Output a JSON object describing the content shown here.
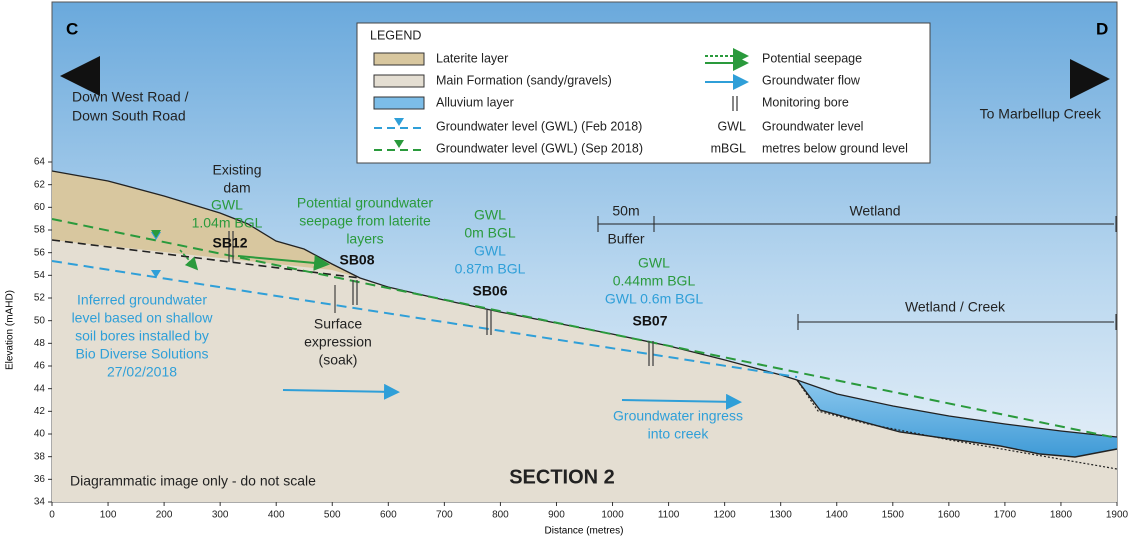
{
  "corner_labels": {
    "left": "C",
    "right": "D"
  },
  "directions": {
    "left": [
      "Down West Road /",
      "Down South Road"
    ],
    "right": "To Marbellup Creek"
  },
  "legend": {
    "title": "LEGEND",
    "left_items": [
      "Laterite layer",
      "Main Formation (sandy/gravels)",
      "Alluvium layer",
      "Groundwater level (GWL) (Feb 2018)",
      "Groundwater level (GWL) (Sep 2018)"
    ],
    "right_items": [
      {
        "label": "Potential seepage"
      },
      {
        "label": "Groundwater flow"
      },
      {
        "label": "Monitoring bore"
      },
      {
        "abbr": "GWL",
        "label": "Groundwater level"
      },
      {
        "abbr": "mBGL",
        "label": "metres below ground level"
      }
    ]
  },
  "annotations": {
    "existing_dam": [
      "Existing",
      "dam"
    ],
    "sb12": {
      "gwl": [
        "GWL",
        "1.04m BGL"
      ],
      "name": "SB12"
    },
    "seepage": [
      "Potential groundwater",
      "seepage from laterite",
      "layers"
    ],
    "sb08": {
      "name": "SB08"
    },
    "surface": [
      "Surface",
      "expression",
      "(soak)"
    ],
    "inferred": [
      "Inferred groundwater",
      "level based on shallow",
      "soil bores installed by",
      "Bio Diverse Solutions",
      "27/02/2018"
    ],
    "sb06": {
      "gwl_sep": [
        "GWL",
        "0m BGL"
      ],
      "gwl_feb": [
        "GWL",
        "0.87m BGL"
      ],
      "name": "SB06"
    },
    "buffer": [
      "50m",
      "Buffer"
    ],
    "wetland": "Wetland",
    "sb07": {
      "gwl_sep": [
        "GWL",
        "0.44mm BGL"
      ],
      "gwl_feb": "GWL 0.6m BGL",
      "name": "SB07"
    },
    "wetland_creek": "Wetland / Creek",
    "ingress": [
      "Groundwater ingress",
      "into creek"
    ]
  },
  "footer_note": "Diagrammatic image only - do not scale",
  "section_title": "SECTION 2",
  "axes": {
    "x_label": "Distance (metres)",
    "y_label": "Elevation (mAHD)",
    "x_ticks": [
      0,
      100,
      200,
      300,
      400,
      500,
      600,
      700,
      800,
      900,
      1000,
      1100,
      1200,
      1300,
      1400,
      1500,
      1600,
      1700,
      1800,
      1900
    ],
    "y_ticks": [
      34,
      36,
      38,
      40,
      42,
      44,
      46,
      48,
      50,
      52,
      54,
      56,
      58,
      60,
      62,
      64
    ]
  }
}
